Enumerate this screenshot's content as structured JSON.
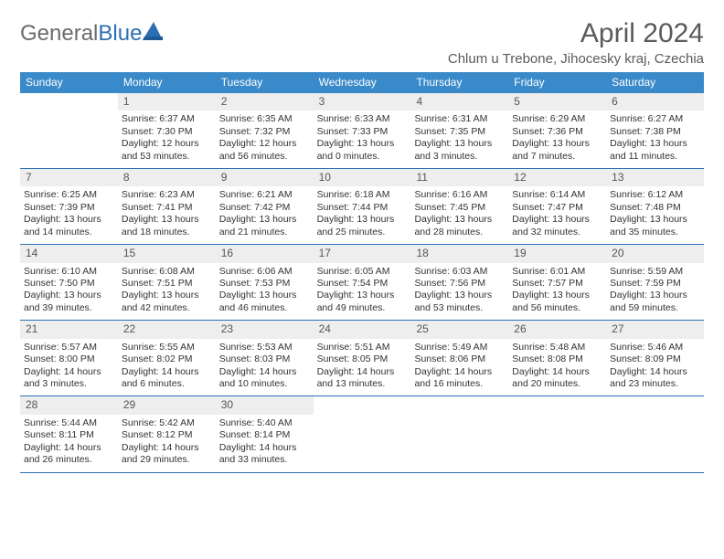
{
  "brand": {
    "part1": "General",
    "part2": "Blue"
  },
  "title": {
    "month": "April 2024",
    "location": "Chlum u Trebone, Jihocesky kraj, Czechia"
  },
  "colors": {
    "header_bg": "#3a8ac9",
    "rule": "#2b6fb2",
    "daybar": "#eeeeee",
    "brand_gray": "#6b6b6b",
    "brand_blue": "#2b6fb2",
    "text": "#333333",
    "background": "#ffffff"
  },
  "typography": {
    "title_fontsize": 30,
    "location_fontsize": 15,
    "dow_fontsize": 12,
    "cell_fontsize": 10.5,
    "daynum_fontsize": 12
  },
  "daysOfWeek": [
    "Sunday",
    "Monday",
    "Tuesday",
    "Wednesday",
    "Thursday",
    "Friday",
    "Saturday"
  ],
  "labels": {
    "sunrise_prefix": "Sunrise: ",
    "sunset_prefix": "Sunset: ",
    "daylight_prefix": "Daylight: "
  },
  "weeks": [
    [
      null,
      {
        "n": "1",
        "sr": "6:37 AM",
        "ss": "7:30 PM",
        "dl": "12 hours and 53 minutes."
      },
      {
        "n": "2",
        "sr": "6:35 AM",
        "ss": "7:32 PM",
        "dl": "12 hours and 56 minutes."
      },
      {
        "n": "3",
        "sr": "6:33 AM",
        "ss": "7:33 PM",
        "dl": "13 hours and 0 minutes."
      },
      {
        "n": "4",
        "sr": "6:31 AM",
        "ss": "7:35 PM",
        "dl": "13 hours and 3 minutes."
      },
      {
        "n": "5",
        "sr": "6:29 AM",
        "ss": "7:36 PM",
        "dl": "13 hours and 7 minutes."
      },
      {
        "n": "6",
        "sr": "6:27 AM",
        "ss": "7:38 PM",
        "dl": "13 hours and 11 minutes."
      }
    ],
    [
      {
        "n": "7",
        "sr": "6:25 AM",
        "ss": "7:39 PM",
        "dl": "13 hours and 14 minutes."
      },
      {
        "n": "8",
        "sr": "6:23 AM",
        "ss": "7:41 PM",
        "dl": "13 hours and 18 minutes."
      },
      {
        "n": "9",
        "sr": "6:21 AM",
        "ss": "7:42 PM",
        "dl": "13 hours and 21 minutes."
      },
      {
        "n": "10",
        "sr": "6:18 AM",
        "ss": "7:44 PM",
        "dl": "13 hours and 25 minutes."
      },
      {
        "n": "11",
        "sr": "6:16 AM",
        "ss": "7:45 PM",
        "dl": "13 hours and 28 minutes."
      },
      {
        "n": "12",
        "sr": "6:14 AM",
        "ss": "7:47 PM",
        "dl": "13 hours and 32 minutes."
      },
      {
        "n": "13",
        "sr": "6:12 AM",
        "ss": "7:48 PM",
        "dl": "13 hours and 35 minutes."
      }
    ],
    [
      {
        "n": "14",
        "sr": "6:10 AM",
        "ss": "7:50 PM",
        "dl": "13 hours and 39 minutes."
      },
      {
        "n": "15",
        "sr": "6:08 AM",
        "ss": "7:51 PM",
        "dl": "13 hours and 42 minutes."
      },
      {
        "n": "16",
        "sr": "6:06 AM",
        "ss": "7:53 PM",
        "dl": "13 hours and 46 minutes."
      },
      {
        "n": "17",
        "sr": "6:05 AM",
        "ss": "7:54 PM",
        "dl": "13 hours and 49 minutes."
      },
      {
        "n": "18",
        "sr": "6:03 AM",
        "ss": "7:56 PM",
        "dl": "13 hours and 53 minutes."
      },
      {
        "n": "19",
        "sr": "6:01 AM",
        "ss": "7:57 PM",
        "dl": "13 hours and 56 minutes."
      },
      {
        "n": "20",
        "sr": "5:59 AM",
        "ss": "7:59 PM",
        "dl": "13 hours and 59 minutes."
      }
    ],
    [
      {
        "n": "21",
        "sr": "5:57 AM",
        "ss": "8:00 PM",
        "dl": "14 hours and 3 minutes."
      },
      {
        "n": "22",
        "sr": "5:55 AM",
        "ss": "8:02 PM",
        "dl": "14 hours and 6 minutes."
      },
      {
        "n": "23",
        "sr": "5:53 AM",
        "ss": "8:03 PM",
        "dl": "14 hours and 10 minutes."
      },
      {
        "n": "24",
        "sr": "5:51 AM",
        "ss": "8:05 PM",
        "dl": "14 hours and 13 minutes."
      },
      {
        "n": "25",
        "sr": "5:49 AM",
        "ss": "8:06 PM",
        "dl": "14 hours and 16 minutes."
      },
      {
        "n": "26",
        "sr": "5:48 AM",
        "ss": "8:08 PM",
        "dl": "14 hours and 20 minutes."
      },
      {
        "n": "27",
        "sr": "5:46 AM",
        "ss": "8:09 PM",
        "dl": "14 hours and 23 minutes."
      }
    ],
    [
      {
        "n": "28",
        "sr": "5:44 AM",
        "ss": "8:11 PM",
        "dl": "14 hours and 26 minutes."
      },
      {
        "n": "29",
        "sr": "5:42 AM",
        "ss": "8:12 PM",
        "dl": "14 hours and 29 minutes."
      },
      {
        "n": "30",
        "sr": "5:40 AM",
        "ss": "8:14 PM",
        "dl": "14 hours and 33 minutes."
      },
      null,
      null,
      null,
      null
    ]
  ]
}
